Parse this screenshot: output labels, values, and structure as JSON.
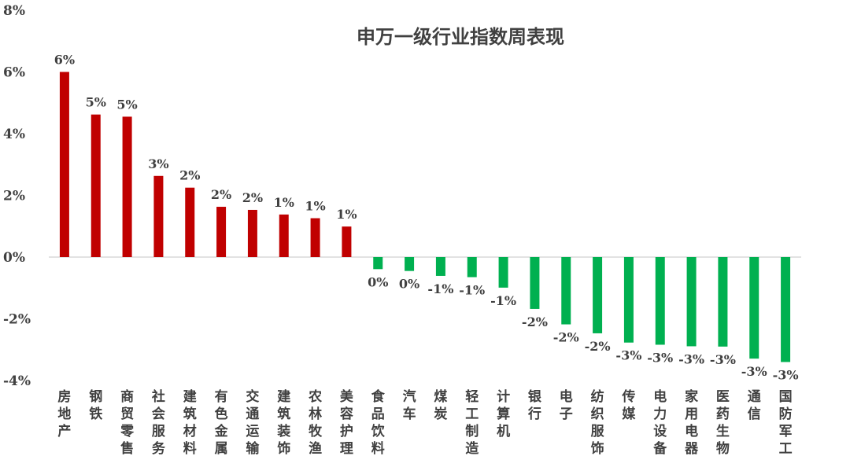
{
  "chart_data": {
    "type": "bar",
    "title": "申万一级行业指数周表现",
    "xlabel": "",
    "ylabel": "",
    "ylim": [
      -4,
      8
    ],
    "y_ticks": [
      8,
      6,
      4,
      2,
      0,
      -2,
      -4
    ],
    "y_tick_labels": [
      "8%",
      "6%",
      "4%",
      "2%",
      "0%",
      "-2%",
      "-4%"
    ],
    "grid": false,
    "categories": [
      "房地产",
      "钢铁",
      "商贸零售",
      "社会服务",
      "建筑材料",
      "有色金属",
      "交通运输",
      "建筑装饰",
      "农林牧渔",
      "美容护理",
      "食品饮料",
      "汽车",
      "煤炭",
      "轻工制造",
      "计算机",
      "银行",
      "电子",
      "纺织服饰",
      "传媒",
      "电力设备",
      "家用电器",
      "医药生物",
      "通信",
      "国防军工"
    ],
    "values": [
      6.0,
      4.62,
      4.55,
      2.63,
      2.25,
      1.63,
      1.53,
      1.38,
      1.26,
      0.99,
      -0.39,
      -0.45,
      -0.61,
      -0.65,
      -0.99,
      -1.68,
      -2.18,
      -2.47,
      -2.77,
      -2.84,
      -2.89,
      -2.9,
      -3.29,
      -3.4
    ],
    "data_labels": [
      "6%",
      "5%",
      "5%",
      "3%",
      "2%",
      "2%",
      "2%",
      "1%",
      "1%",
      "1%",
      "0%",
      "0%",
      "-1%",
      "-1%",
      "-1%",
      "-2%",
      "-2%",
      "-2%",
      "-3%",
      "-3%",
      "-3%",
      "-3%",
      "-3%",
      "-3%"
    ],
    "colors": {
      "positive": "#c00000",
      "negative": "#00b050",
      "axis": "#d9d9d9",
      "text": "#404040"
    }
  }
}
